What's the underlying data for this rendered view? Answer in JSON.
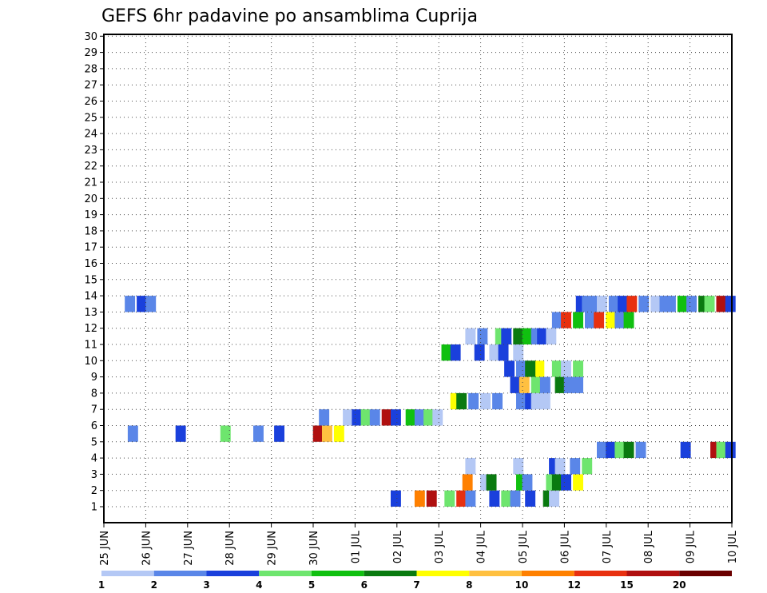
{
  "chart_data": {
    "type": "heatmap",
    "title": "GEFS 6hr padavine po ansamblima Cuprija",
    "xlabel": "",
    "ylabel": "",
    "grid": true,
    "legend_placement": "bottom",
    "x_ticks": [
      "25 JUN",
      "26 JUN",
      "27 JUN",
      "28 JUN",
      "29 JUN",
      "30 JUN",
      "01 JUL",
      "02 JUL",
      "03 JUL",
      "04 JUL",
      "05 JUL",
      "06 JUL",
      "07 JUL",
      "08 JUL",
      "09 JUL",
      "10 JUL"
    ],
    "y_ticks": [
      "1",
      "2",
      "3",
      "4",
      "5",
      "6",
      "7",
      "8",
      "9",
      "10",
      "11",
      "12",
      "13",
      "14",
      "15",
      "16",
      "17",
      "18",
      "19",
      "20",
      "21",
      "22",
      "23",
      "24",
      "25",
      "26",
      "27",
      "28",
      "29",
      "30"
    ],
    "colorbar": {
      "labels": [
        "1",
        "2",
        "3",
        "4",
        "5",
        "6",
        "7",
        "8",
        "10",
        "12",
        "15",
        "20"
      ],
      "colors": [
        "#b4c8f5",
        "#5a86e8",
        "#1a40dc",
        "#6ee56e",
        "#10c010",
        "#0a7a10",
        "#ffff00",
        "#ffc040",
        "#ff8000",
        "#e83010",
        "#b01010",
        "#6a0000"
      ]
    },
    "cells": [
      [
        9.6,
        1,
        2
      ],
      [
        10.4,
        1,
        8
      ],
      [
        10.8,
        1,
        10
      ],
      [
        11.4,
        1,
        3
      ],
      [
        11.8,
        1,
        9
      ],
      [
        12.1,
        1,
        1
      ],
      [
        12.9,
        1,
        2
      ],
      [
        13.3,
        1,
        3
      ],
      [
        13.6,
        1,
        1
      ],
      [
        14.1,
        1,
        2
      ],
      [
        14.7,
        1,
        5
      ],
      [
        14.9,
        1,
        0
      ],
      [
        13.8,
        2,
        4
      ],
      [
        14.0,
        2,
        1
      ],
      [
        14.8,
        2,
        3
      ],
      [
        15.0,
        2,
        5
      ],
      [
        15.3,
        2,
        2
      ],
      [
        15.7,
        2,
        6
      ],
      [
        12.6,
        2,
        0
      ],
      [
        12.8,
        2,
        5
      ],
      [
        12.0,
        2,
        8
      ],
      [
        12.1,
        3,
        0
      ],
      [
        13.7,
        3,
        0
      ],
      [
        14.9,
        3,
        2
      ],
      [
        15.1,
        3,
        0
      ],
      [
        15.6,
        3,
        1
      ],
      [
        16.0,
        3,
        3
      ],
      [
        16.5,
        4,
        1
      ],
      [
        16.8,
        4,
        2
      ],
      [
        17.1,
        4,
        3
      ],
      [
        17.8,
        4,
        1
      ],
      [
        17.4,
        4,
        5
      ],
      [
        19.3,
        4,
        2
      ],
      [
        20.3,
        4,
        10
      ],
      [
        20.5,
        4,
        3
      ],
      [
        20.8,
        4,
        2
      ],
      [
        0.8,
        5,
        1
      ],
      [
        2.4,
        5,
        2
      ],
      [
        3.9,
        5,
        3
      ],
      [
        5.7,
        5,
        2
      ],
      [
        5.0,
        5,
        1
      ],
      [
        7.0,
        5,
        10
      ],
      [
        7.3,
        5,
        7
      ],
      [
        7.7,
        5,
        6
      ],
      [
        7.2,
        6,
        1
      ],
      [
        8.0,
        6,
        0
      ],
      [
        8.3,
        6,
        2
      ],
      [
        8.6,
        6,
        3
      ],
      [
        8.9,
        6,
        1
      ],
      [
        9.3,
        6,
        10
      ],
      [
        9.6,
        6,
        2
      ],
      [
        10.1,
        6,
        4
      ],
      [
        10.4,
        6,
        1
      ],
      [
        10.7,
        6,
        3
      ],
      [
        11.0,
        6,
        0
      ],
      [
        11.6,
        7,
        6
      ],
      [
        11.8,
        7,
        5
      ],
      [
        12.2,
        7,
        1
      ],
      [
        12.6,
        7,
        0
      ],
      [
        13.0,
        7,
        1
      ],
      [
        13.8,
        7,
        1
      ],
      [
        14.1,
        7,
        2
      ],
      [
        14.3,
        7,
        0
      ],
      [
        14.6,
        7,
        0
      ],
      [
        13.6,
        8,
        2
      ],
      [
        13.9,
        8,
        7
      ],
      [
        14.3,
        8,
        3
      ],
      [
        14.6,
        8,
        1
      ],
      [
        15.1,
        8,
        5
      ],
      [
        15.4,
        8,
        1
      ],
      [
        15.7,
        8,
        1
      ],
      [
        13.4,
        9,
        2
      ],
      [
        13.8,
        9,
        1
      ],
      [
        14.4,
        9,
        6
      ],
      [
        14.1,
        9,
        5
      ],
      [
        15.0,
        9,
        3
      ],
      [
        15.3,
        9,
        0
      ],
      [
        15.7,
        9,
        3
      ],
      [
        11.3,
        10,
        4
      ],
      [
        11.6,
        10,
        2
      ],
      [
        12.4,
        10,
        2
      ],
      [
        12.9,
        10,
        0
      ],
      [
        13.2,
        10,
        2
      ],
      [
        13.7,
        10,
        0
      ],
      [
        12.1,
        11,
        0
      ],
      [
        12.5,
        11,
        1
      ],
      [
        13.1,
        11,
        3
      ],
      [
        13.3,
        11,
        2
      ],
      [
        13.7,
        11,
        5
      ],
      [
        14.0,
        11,
        4
      ],
      [
        14.3,
        11,
        1
      ],
      [
        14.5,
        11,
        2
      ],
      [
        14.8,
        11,
        0
      ],
      [
        15.0,
        12,
        1
      ],
      [
        15.3,
        12,
        9
      ],
      [
        15.7,
        12,
        4
      ],
      [
        16.1,
        12,
        1
      ],
      [
        16.4,
        12,
        9
      ],
      [
        16.8,
        12,
        6
      ],
      [
        17.1,
        12,
        1
      ],
      [
        17.4,
        12,
        4
      ],
      [
        0.7,
        13,
        1
      ],
      [
        1.1,
        13,
        2
      ],
      [
        1.4,
        13,
        1
      ],
      [
        15.8,
        13,
        2
      ],
      [
        16.0,
        13,
        1
      ],
      [
        16.3,
        13,
        1
      ],
      [
        16.5,
        13,
        0
      ],
      [
        16.9,
        13,
        1
      ],
      [
        17.2,
        13,
        2
      ],
      [
        17.5,
        13,
        9
      ],
      [
        17.9,
        13,
        1
      ],
      [
        18.3,
        13,
        0
      ],
      [
        18.6,
        13,
        1
      ],
      [
        18.8,
        13,
        1
      ],
      [
        19.2,
        13,
        4
      ],
      [
        19.5,
        13,
        1
      ],
      [
        19.9,
        13,
        5
      ],
      [
        20.1,
        13,
        3
      ],
      [
        20.5,
        13,
        10
      ],
      [
        20.8,
        13,
        2
      ]
    ]
  }
}
